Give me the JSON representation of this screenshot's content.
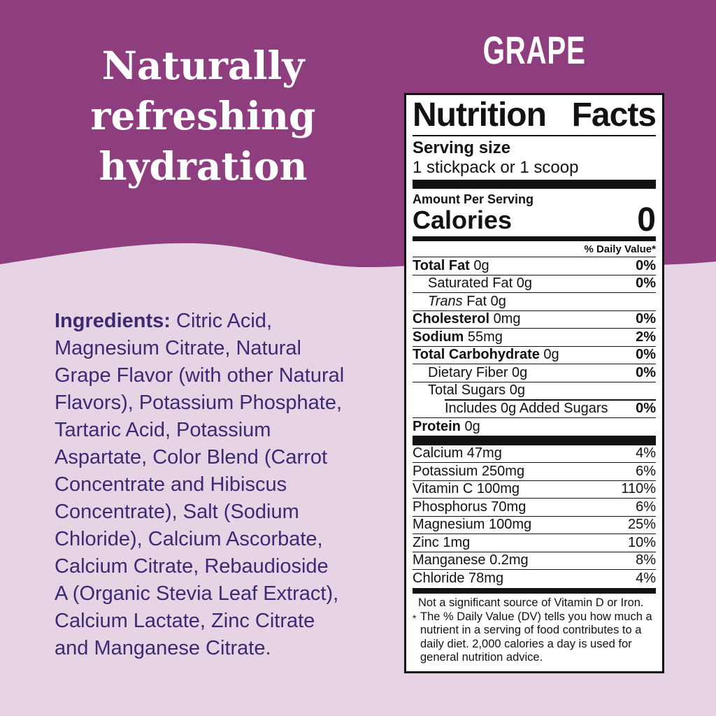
{
  "colors": {
    "purple": "#8e3d7f",
    "lavender": "#e6d3e3",
    "ingredient_text": "#3b2a74",
    "label_ink": "#121212",
    "white": "#ffffff"
  },
  "flavor_label": "GRAPE",
  "headline": {
    "lines": [
      "Naturally",
      "refreshing",
      "hydration"
    ]
  },
  "ingredients": {
    "label": "Ingredients:",
    "lines": [
      "Citric Acid,",
      "Magnesium Citrate, Natural",
      "Grape Flavor (with other Natural",
      "Flavors), Potassium Phosphate,",
      "Tartaric Acid, Potassium",
      "Aspartate, Color Blend (Carrot",
      "Concentrate and Hibiscus",
      "Concentrate), Salt (Sodium",
      "Chloride), Calcium Ascorbate,",
      "Calcium Citrate, Rebaudioside",
      "A (Organic Stevia Leaf Extract),",
      "Calcium Lactate, Zinc Citrate",
      "and Manganese Citrate."
    ]
  },
  "nutrition_facts": {
    "title_word1": "Nutrition",
    "title_word2": "Facts",
    "serving_size_label": "Serving size",
    "serving_size_value": "1 stickpack or 1 scoop",
    "amount_per_serving": "Amount Per Serving",
    "calories_label": "Calories",
    "calories_value": "0",
    "daily_value_header": "% Daily Value*",
    "nutrient_rows": [
      {
        "name": "Total Fat",
        "amount": "0g",
        "dv": "0%",
        "name_bold": true,
        "dv_bold": true,
        "level": "main"
      },
      {
        "name": "Saturated Fat",
        "amount": "0g",
        "dv": "0%",
        "name_bold": false,
        "dv_bold": true,
        "level": "sub"
      },
      {
        "italic_prefix": "Trans",
        "name": "Fat",
        "amount": "0g",
        "dv": "",
        "name_bold": false,
        "dv_bold": false,
        "level": "sub"
      },
      {
        "name": "Cholesterol",
        "amount": "0mg",
        "dv": "0%",
        "name_bold": true,
        "dv_bold": true,
        "level": "main"
      },
      {
        "name": "Sodium",
        "amount": "55mg",
        "dv": "2%",
        "name_bold": true,
        "dv_bold": true,
        "level": "main"
      },
      {
        "name": "Total Carbohydrate",
        "amount": "0g",
        "dv": "0%",
        "name_bold": true,
        "dv_bold": true,
        "level": "main"
      },
      {
        "name": "Dietary Fiber",
        "amount": "0g",
        "dv": "0%",
        "name_bold": false,
        "dv_bold": true,
        "level": "sub"
      },
      {
        "name": "Total Sugars",
        "amount": "0g",
        "dv": "",
        "name_bold": false,
        "dv_bold": false,
        "level": "sub"
      },
      {
        "name": "Includes 0g Added Sugars",
        "amount": "",
        "dv": "0%",
        "name_bold": false,
        "dv_bold": true,
        "level": "subsub",
        "rule_indent": true
      },
      {
        "name": "Protein",
        "amount": "0g",
        "dv": "",
        "name_bold": true,
        "dv_bold": false,
        "level": "main"
      }
    ],
    "mineral_rows": [
      {
        "name": "Calcium",
        "amount": "47mg",
        "dv": "4%"
      },
      {
        "name": "Potassium",
        "amount": "250mg",
        "dv": "6%"
      },
      {
        "name": "Vitamin C",
        "amount": "100mg",
        "dv": "110%"
      },
      {
        "name": "Phosphorus",
        "amount": "70mg",
        "dv": "6%"
      },
      {
        "name": "Magnesium",
        "amount": "100mg",
        "dv": "25%"
      },
      {
        "name": "Zinc",
        "amount": "1mg",
        "dv": "10%"
      },
      {
        "name": "Manganese",
        "amount": "0.2mg",
        "dv": "8%"
      },
      {
        "name": "Chloride",
        "amount": "78mg",
        "dv": "4%"
      }
    ],
    "not_significant": "Not a significant source of Vitamin D or Iron.",
    "footnote_symbol": "*",
    "footnote": "The % Daily Value (DV) tells you how much a nutrient in a serving of food contributes to a daily diet. 2,000 calories a day is used for general nutrition advice."
  }
}
